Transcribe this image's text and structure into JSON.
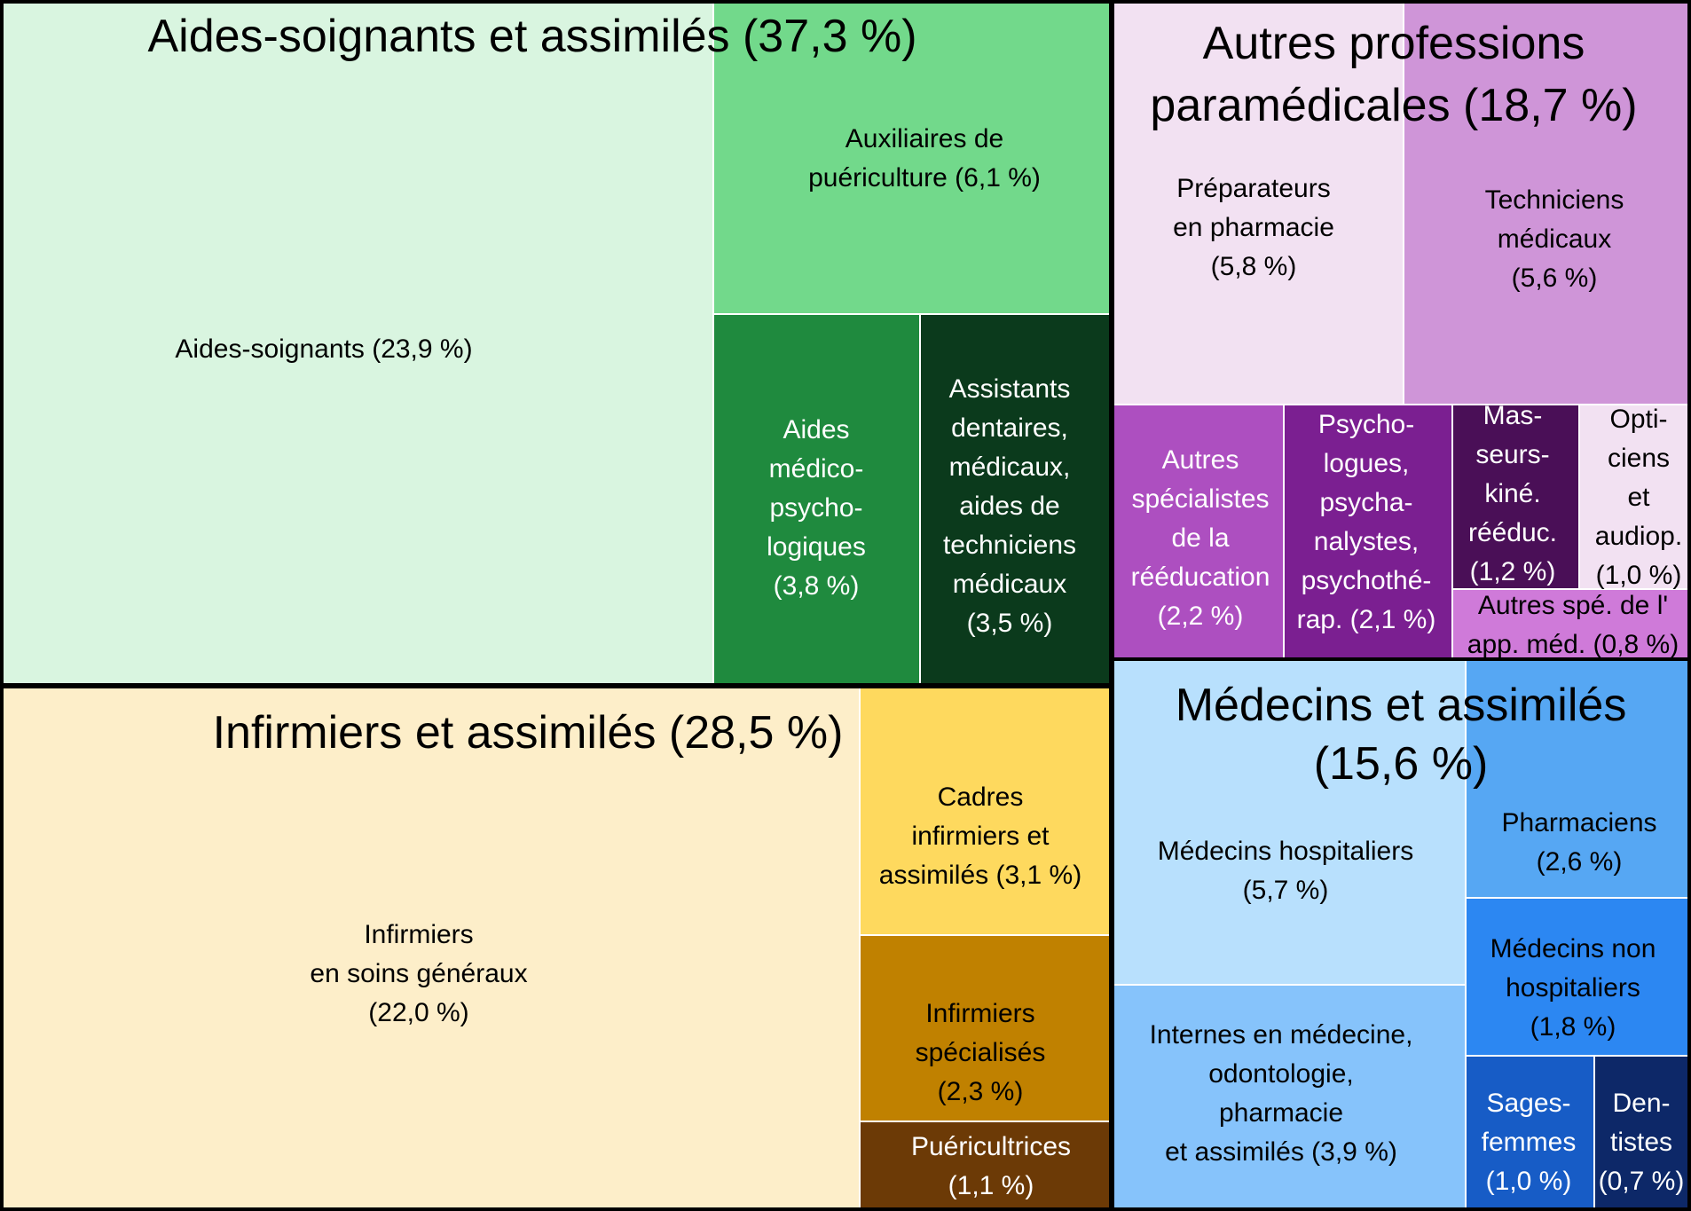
{
  "chart_data": {
    "type": "treemap",
    "unit": "%",
    "groups": [
      {
        "id": "aides",
        "label": "Aides-soignants et assimilés (37,3 %)",
        "value": 37.3,
        "children": [
          {
            "id": "aides-soignants",
            "label": [
              "Aides-soignants (23,9 %)"
            ],
            "value": 23.9,
            "color": "#d9f5e0",
            "text_color": "#000000"
          },
          {
            "id": "auxiliaires-puericulture",
            "label": [
              "Auxiliaires de",
              "puériculture (6,1 %)"
            ],
            "value": 6.1,
            "color": "#72d98b",
            "text_color": "#000000"
          },
          {
            "id": "aides-medico-psychologiques",
            "label": [
              "Aides",
              "médico-",
              "psycho-",
              "logiques",
              "(3,8 %)"
            ],
            "value": 3.8,
            "color": "#1f8a3e",
            "text_color": "#ffffff"
          },
          {
            "id": "assistants-dentaires",
            "label": [
              "Assistants",
              "dentaires,",
              "médicaux,",
              "aides de",
              "techniciens",
              "médicaux",
              "(3,5 %)"
            ],
            "value": 3.5,
            "color": "#0b3a1c",
            "text_color": "#ffffff"
          }
        ]
      },
      {
        "id": "infirmiers",
        "label": "Infirmiers et assimilés (28,5 %)",
        "value": 28.5,
        "children": [
          {
            "id": "infirmiers-soins-generaux",
            "label": [
              "Infirmiers",
              "en soins généraux",
              "(22,0 %)"
            ],
            "value": 22.0,
            "color": "#fdeec9",
            "text_color": "#000000"
          },
          {
            "id": "cadres-infirmiers",
            "label": [
              "Cadres",
              "infirmiers et",
              "assimilés (3,1 %)"
            ],
            "value": 3.1,
            "color": "#fed95e",
            "text_color": "#000000"
          },
          {
            "id": "infirmiers-specialises",
            "label": [
              "Infirmiers",
              "spécialisés",
              "(2,3 %)"
            ],
            "value": 2.3,
            "color": "#c08100",
            "text_color": "#000000"
          },
          {
            "id": "puericultrices",
            "label": [
              "Puéricultrices",
              "(1,1 %)"
            ],
            "value": 1.1,
            "color": "#6c3a06",
            "text_color": "#ffffff"
          }
        ]
      },
      {
        "id": "autres",
        "label": [
          "Autres professions",
          "paramédicales  (18,7 %)"
        ],
        "value": 18.7,
        "children": [
          {
            "id": "preparateurs-pharmacie",
            "label": [
              "Préparateurs",
              "en pharmacie",
              "(5,8 %)"
            ],
            "value": 5.8,
            "color": "#f2e1f2",
            "text_color": "#000000"
          },
          {
            "id": "techniciens-medicaux",
            "label": [
              "Techniciens",
              "médicaux",
              "(5,6 %)"
            ],
            "value": 5.6,
            "color": "#cf95d8",
            "text_color": "#000000"
          },
          {
            "id": "autres-specialistes-reeducation",
            "label": [
              "Autres",
              "spécialistes",
              "de la",
              "rééducation",
              "(2,2 %)"
            ],
            "value": 2.2,
            "color": "#ad4fc0",
            "text_color": "#ffffff"
          },
          {
            "id": "psychologues",
            "label": [
              "Psycho-",
              "logues,",
              "psycha-",
              "nalystes,",
              "psychothé-",
              "rap. (2,1 %)"
            ],
            "value": 2.1,
            "color": "#7b1f91",
            "text_color": "#ffffff"
          },
          {
            "id": "masseurs-kine",
            "label": [
              "Mas-",
              "seurs-",
              "kiné.",
              "rééduc.",
              "(1,2 %)"
            ],
            "value": 1.2,
            "color": "#4a0f57",
            "text_color": "#ffffff"
          },
          {
            "id": "opticiens",
            "label": [
              "Opti-",
              "ciens",
              "et",
              "audiop.",
              "(1,0 %)"
            ],
            "value": 1.0,
            "color": "#f2e1f2",
            "text_color": "#000000"
          },
          {
            "id": "autres-spe-app-med",
            "label": [
              "Autres spé. de l'",
              "app. méd. (0,8 %)"
            ],
            "value": 0.8,
            "color": "#cf7ad9",
            "text_color": "#000000"
          }
        ]
      },
      {
        "id": "medecins",
        "label": [
          "Médecins et assimilés",
          "(15,6 %)"
        ],
        "value": 15.6,
        "children": [
          {
            "id": "medecins-hospitaliers",
            "label": [
              "Médecins hospitaliers",
              "(5,7 %)"
            ],
            "value": 5.7,
            "color": "#b8e0fd",
            "text_color": "#000000"
          },
          {
            "id": "internes",
            "label": [
              "Internes en médecine,",
              "odontologie,",
              "pharmacie",
              "et assimilés (3,9 %)"
            ],
            "value": 3.9,
            "color": "#86c3fb",
            "text_color": "#000000"
          },
          {
            "id": "pharmaciens",
            "label": [
              "Pharmaciens",
              "(2,6 %)"
            ],
            "value": 2.6,
            "color": "#56a7f3",
            "text_color": "#000000"
          },
          {
            "id": "medecins-non-hospitaliers",
            "label": [
              "Médecins non",
              "hospitaliers",
              "(1,8 %)"
            ],
            "value": 1.8,
            "color": "#2c87f2",
            "text_color": "#000000"
          },
          {
            "id": "sages-femmes",
            "label": [
              "Sages-",
              "femmes",
              "(1,0 %)"
            ],
            "value": 1.0,
            "color": "#175cc6",
            "text_color": "#ffffff"
          },
          {
            "id": "dentistes",
            "label": [
              "Den-",
              "tistes",
              "(0,7 %)"
            ],
            "value": 0.7,
            "color": "#0d2868",
            "text_color": "#ffffff"
          }
        ]
      }
    ]
  }
}
